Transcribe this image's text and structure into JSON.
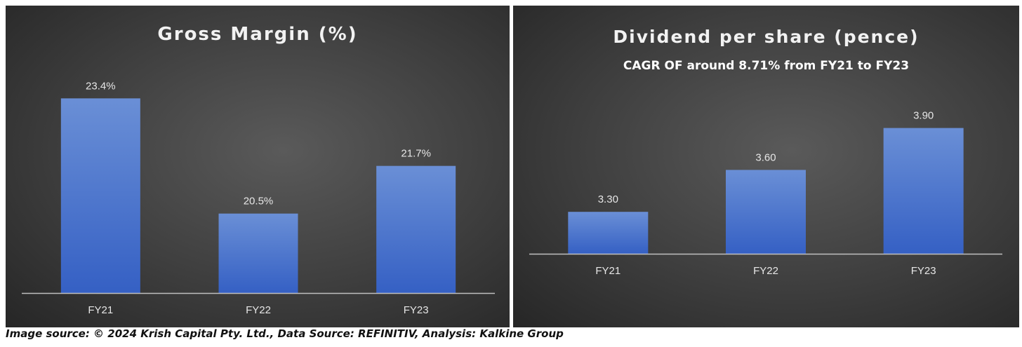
{
  "colors": {
    "bar_top": "#6a8fd6",
    "bar_bottom": "#3560c4",
    "axis": "#bfbfbf",
    "label": "#e6e6e6"
  },
  "chart_data": [
    {
      "type": "bar",
      "title": "Gross Margin (%)",
      "categories": [
        "FY21",
        "FY22",
        "FY23"
      ],
      "values": [
        23.4,
        20.5,
        21.7
      ],
      "value_labels": [
        "23.4%",
        "20.5%",
        "21.7%"
      ],
      "ylim": [
        18.5,
        24.5
      ],
      "grid": false,
      "legend": "none"
    },
    {
      "type": "bar",
      "title": "Dividend per share (pence)",
      "subtitle": "CAGR OF around 8.71% from FY21 to FY23",
      "categories": [
        "FY21",
        "FY22",
        "FY23"
      ],
      "values": [
        3.3,
        3.6,
        3.9
      ],
      "value_labels": [
        "3.30",
        "3.60",
        "3.90"
      ],
      "ylim": [
        3.0,
        4.5
      ],
      "grid": false,
      "legend": "none"
    }
  ],
  "caption": "Image source: © 2024 Krish Capital Pty. Ltd., Data Source: REFINITIV, Analysis: Kalkine Group"
}
